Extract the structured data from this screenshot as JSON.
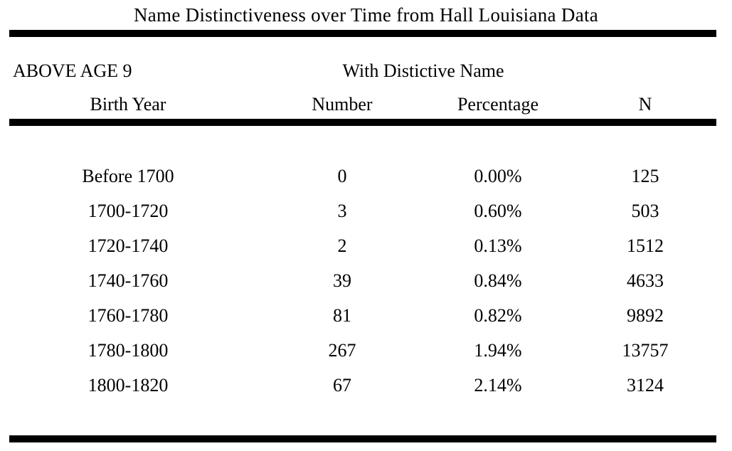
{
  "table": {
    "title": "Name Distinctiveness over Time from Hall Louisiana Data",
    "group_label": "ABOVE AGE 9",
    "span_header": "With Distictive Name",
    "columns": [
      "Birth Year",
      "Number",
      "Percentage",
      "N"
    ],
    "rows": [
      [
        "Before 1700",
        "0",
        "0.00%",
        "125"
      ],
      [
        "1700-1720",
        "3",
        "0.60%",
        "503"
      ],
      [
        "1720-1740",
        "2",
        "0.13%",
        "1512"
      ],
      [
        "1740-1760",
        "39",
        "0.84%",
        "4633"
      ],
      [
        "1760-1780",
        "81",
        "0.82%",
        "9892"
      ],
      [
        "1780-1800",
        "267",
        "1.94%",
        "13757"
      ],
      [
        "1800-1820",
        "67",
        "2.14%",
        "3124"
      ]
    ]
  },
  "colors": {
    "text": "#000000",
    "background": "#ffffff",
    "rule": "#000000"
  },
  "chart_data": {
    "type": "table",
    "title": "Name Distinctiveness over Time from Hall Louisiana Data",
    "group_label": "ABOVE AGE 9",
    "span_header": "With Distictive Name",
    "columns": [
      "Birth Year",
      "Number",
      "Percentage",
      "N"
    ],
    "rows": [
      [
        "Before 1700",
        0,
        "0.00%",
        125
      ],
      [
        "1700-1720",
        3,
        "0.60%",
        503
      ],
      [
        "1720-1740",
        2,
        "0.13%",
        1512
      ],
      [
        "1740-1760",
        39,
        "0.84%",
        4633
      ],
      [
        "1760-1780",
        81,
        "0.82%",
        9892
      ],
      [
        "1780-1800",
        267,
        "1.94%",
        13757
      ],
      [
        "1800-1820",
        67,
        "2.14%",
        3124
      ]
    ]
  }
}
